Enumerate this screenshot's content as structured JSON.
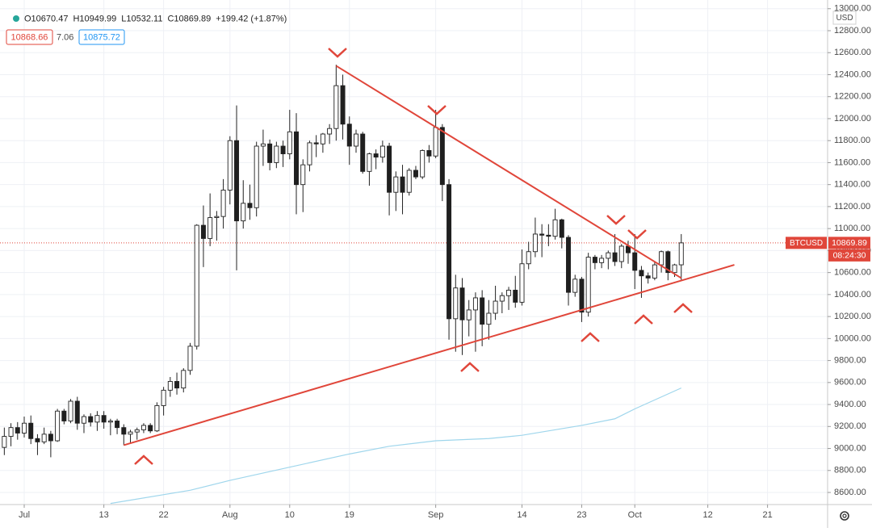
{
  "chart_data": {
    "type": "candlestick",
    "currency": "USD",
    "legend_values": [
      {
        "value": 10670.47,
        "label": "O10670.47"
      },
      {
        "value": 10949.99,
        "label": "H10949.99"
      },
      {
        "value": 10532.11,
        "label": "L10532.11"
      },
      {
        "value": 10869.89,
        "label": "C10869.89"
      },
      {
        "value": 199.42,
        "label": "+199.42 (+1.87%)"
      }
    ],
    "bid": 10868.66,
    "spread": 7.06,
    "ask": 10875.72,
    "last_price": 10869.89,
    "countdown": "08:24:30",
    "price_tag_color": "#e0463a",
    "xlim": [
      -3.65,
      121.05
    ],
    "ylim": [
      8490,
      13079
    ],
    "xticks": [
      {
        "value": 0,
        "label": "Jul"
      },
      {
        "value": 12,
        "label": "13"
      },
      {
        "value": 21,
        "label": "22"
      },
      {
        "value": 31,
        "label": "Aug"
      },
      {
        "value": 40,
        "label": "10"
      },
      {
        "value": 49,
        "label": "19"
      },
      {
        "value": 62,
        "label": "Sep"
      },
      {
        "value": 75,
        "label": "14"
      },
      {
        "value": 84,
        "label": "23"
      },
      {
        "value": 92,
        "label": "Oct"
      },
      {
        "value": 103,
        "label": "12"
      },
      {
        "value": 112,
        "label": "21"
      }
    ],
    "yticks": [
      {
        "value": 8600,
        "label": "8600.00"
      },
      {
        "value": 8800,
        "label": "8800.00"
      },
      {
        "value": 9000,
        "label": "9000.00"
      },
      {
        "value": 9200,
        "label": "9200.00"
      },
      {
        "value": 9400,
        "label": "9400.00"
      },
      {
        "value": 9600,
        "label": "9600.00"
      },
      {
        "value": 9800,
        "label": "9800.00"
      },
      {
        "value": 10000,
        "label": "10000.00"
      },
      {
        "value": 10200,
        "label": "10200.00"
      },
      {
        "value": 10400,
        "label": "10400.00"
      },
      {
        "value": 10600,
        "label": "10600.00"
      },
      {
        "value": 10800,
        "label": "10800.00"
      },
      {
        "value": 11000,
        "label": "11000.00"
      },
      {
        "value": 11200,
        "label": "11200.00"
      },
      {
        "value": 11400,
        "label": "11400.00"
      },
      {
        "value": 11600,
        "label": "11600.00"
      },
      {
        "value": 11800,
        "label": "11800.00"
      },
      {
        "value": 12000,
        "label": "12000.00"
      },
      {
        "value": 12200,
        "label": "12200.00"
      },
      {
        "value": 12400,
        "label": "12400.00"
      },
      {
        "value": 12600,
        "label": "12600.00"
      },
      {
        "value": 12800,
        "label": "12800.00"
      },
      {
        "value": 13000,
        "label": "13000.00"
      }
    ],
    "grid": true,
    "x": [
      -3,
      -2,
      -1,
      0,
      1,
      2,
      3,
      4,
      5,
      6,
      7,
      8,
      9,
      10,
      11,
      12,
      13,
      14,
      15,
      16,
      17,
      18,
      19,
      20,
      21,
      22,
      23,
      24,
      25,
      26,
      27,
      28,
      29,
      30,
      31,
      32,
      33,
      34,
      35,
      36,
      37,
      38,
      39,
      40,
      41,
      42,
      43,
      44,
      45,
      46,
      47,
      48,
      49,
      50,
      51,
      52,
      53,
      54,
      55,
      56,
      57,
      58,
      59,
      60,
      61,
      62,
      63,
      64,
      65,
      66,
      67,
      68,
      69,
      70,
      71,
      72,
      73,
      74,
      75,
      76,
      77,
      78,
      79,
      80,
      81,
      82,
      83,
      84,
      85,
      86,
      87,
      88,
      89,
      90,
      91,
      92,
      93,
      94,
      95,
      96,
      97,
      98,
      99
    ],
    "series": [
      {
        "name": "BTCUSD",
        "up_color": "#ffffff",
        "down_color": "#1f1f1f",
        "wick_color": "#222222",
        "open": [
          9010,
          9110,
          9190,
          9140,
          9230,
          9090,
          9060,
          9130,
          9070,
          9340,
          9250,
          9430,
          9230,
          9290,
          9240,
          9300,
          9240,
          9250,
          9190,
          9130,
          9150,
          9170,
          9210,
          9160,
          9390,
          9530,
          9610,
          9550,
          9710,
          9930,
          11030,
          10910,
          11100,
          11110,
          11350,
          11800,
          11070,
          11230,
          11190,
          11750,
          11770,
          11600,
          11750,
          11680,
          11880,
          11400,
          11580,
          11780,
          11770,
          11860,
          11910,
          12300,
          11950,
          11750,
          11860,
          11520,
          11680,
          11650,
          11750,
          11330,
          11470,
          11330,
          11530,
          11470,
          11710,
          11660,
          11920,
          11400,
          10180,
          10460,
          10170,
          10260,
          10370,
          10130,
          10230,
          10340,
          10390,
          10440,
          10330,
          10680,
          10790,
          10950,
          10940,
          10930,
          11080,
          10920,
          10420,
          10540,
          10240,
          10740,
          10690,
          10730,
          10780,
          10700,
          10840,
          10780,
          10620,
          10570,
          10550,
          10670,
          10790,
          10600,
          10670.47
        ],
        "high": [
          9190,
          9230,
          9240,
          9290,
          9300,
          9130,
          9190,
          9160,
          9360,
          9360,
          9450,
          9470,
          9310,
          9320,
          9340,
          9340,
          9270,
          9270,
          9220,
          9170,
          9190,
          9230,
          9230,
          9420,
          9560,
          9650,
          9690,
          9730,
          9960,
          11040,
          11210,
          11320,
          11160,
          11450,
          11840,
          12120,
          11440,
          11400,
          11790,
          11900,
          11810,
          11790,
          11800,
          12080,
          12050,
          11630,
          11800,
          11850,
          11870,
          11950,
          12490,
          12400,
          12020,
          11900,
          11880,
          11690,
          11720,
          11800,
          11780,
          11520,
          11580,
          11550,
          11570,
          11720,
          11760,
          12080,
          11950,
          11450,
          10580,
          10550,
          10350,
          10420,
          10440,
          10350,
          10480,
          10420,
          10470,
          10570,
          10810,
          10880,
          11100,
          11040,
          11040,
          11180,
          11090,
          10940,
          10580,
          10560,
          10780,
          10760,
          10760,
          10800,
          10950,
          10860,
          10890,
          10950,
          10660,
          10600,
          10700,
          10800,
          10800,
          10680,
          10949.99
        ],
        "low": [
          8940,
          9020,
          9080,
          9100,
          9040,
          8940,
          9040,
          8920,
          9060,
          9220,
          9230,
          9170,
          9140,
          9200,
          9160,
          9180,
          9120,
          9130,
          9030,
          9050,
          9080,
          9140,
          9140,
          9150,
          9300,
          9470,
          9490,
          9510,
          9670,
          9900,
          10650,
          10840,
          10890,
          11000,
          11220,
          10620,
          11000,
          11080,
          11110,
          11570,
          11530,
          11550,
          11560,
          11630,
          11130,
          11150,
          11520,
          11650,
          11690,
          11770,
          11800,
          11810,
          11580,
          11690,
          11500,
          11390,
          11540,
          11600,
          11120,
          11160,
          11130,
          11300,
          11450,
          11450,
          11600,
          11640,
          11250,
          9990,
          9880,
          9850,
          10020,
          9880,
          9930,
          9990,
          10170,
          10230,
          10260,
          10280,
          10300,
          10630,
          10740,
          10740,
          10840,
          10900,
          10820,
          10300,
          10380,
          10150,
          10200,
          10630,
          10640,
          10630,
          10660,
          10640,
          10680,
          10450,
          10370,
          10500,
          10530,
          10600,
          10530,
          10560,
          10532.11
        ],
        "close": [
          9110,
          9190,
          9140,
          9230,
          9090,
          9060,
          9130,
          9070,
          9340,
          9250,
          9430,
          9230,
          9290,
          9240,
          9300,
          9240,
          9250,
          9190,
          9130,
          9150,
          9170,
          9210,
          9160,
          9390,
          9530,
          9610,
          9550,
          9710,
          9930,
          11030,
          10910,
          11100,
          11110,
          11350,
          11800,
          11070,
          11230,
          11190,
          11750,
          11770,
          11600,
          11750,
          11680,
          11880,
          11400,
          11580,
          11780,
          11770,
          11860,
          11910,
          12300,
          11950,
          11750,
          11860,
          11520,
          11680,
          11650,
          11750,
          11330,
          11470,
          11330,
          11530,
          11470,
          11710,
          11660,
          11920,
          11400,
          10180,
          10460,
          10170,
          10260,
          10370,
          10130,
          10230,
          10340,
          10390,
          10440,
          10330,
          10680,
          10790,
          10950,
          10940,
          10930,
          11080,
          10920,
          10420,
          10540,
          10240,
          10740,
          10690,
          10730,
          10780,
          10700,
          10840,
          10780,
          10620,
          10570,
          10550,
          10670,
          10790,
          10600,
          10670,
          10869.89
        ]
      }
    ],
    "moving_average": {
      "color": "#9fd6ec",
      "x": [
        13,
        25,
        31,
        40,
        49,
        55,
        62,
        70,
        75,
        84,
        89,
        92,
        99
      ],
      "values": [
        8500,
        8620,
        8710,
        8830,
        8950,
        9020,
        9070,
        9090,
        9120,
        9210,
        9270,
        9360,
        9550
      ]
    },
    "trendlines": [
      {
        "color": "#e0463a",
        "x": [
          47,
          99
        ],
        "values": [
          12480,
          10550
        ]
      },
      {
        "color": "#e0463a",
        "x": [
          15,
          107
        ],
        "values": [
          9030,
          10670
        ]
      }
    ]
  }
}
